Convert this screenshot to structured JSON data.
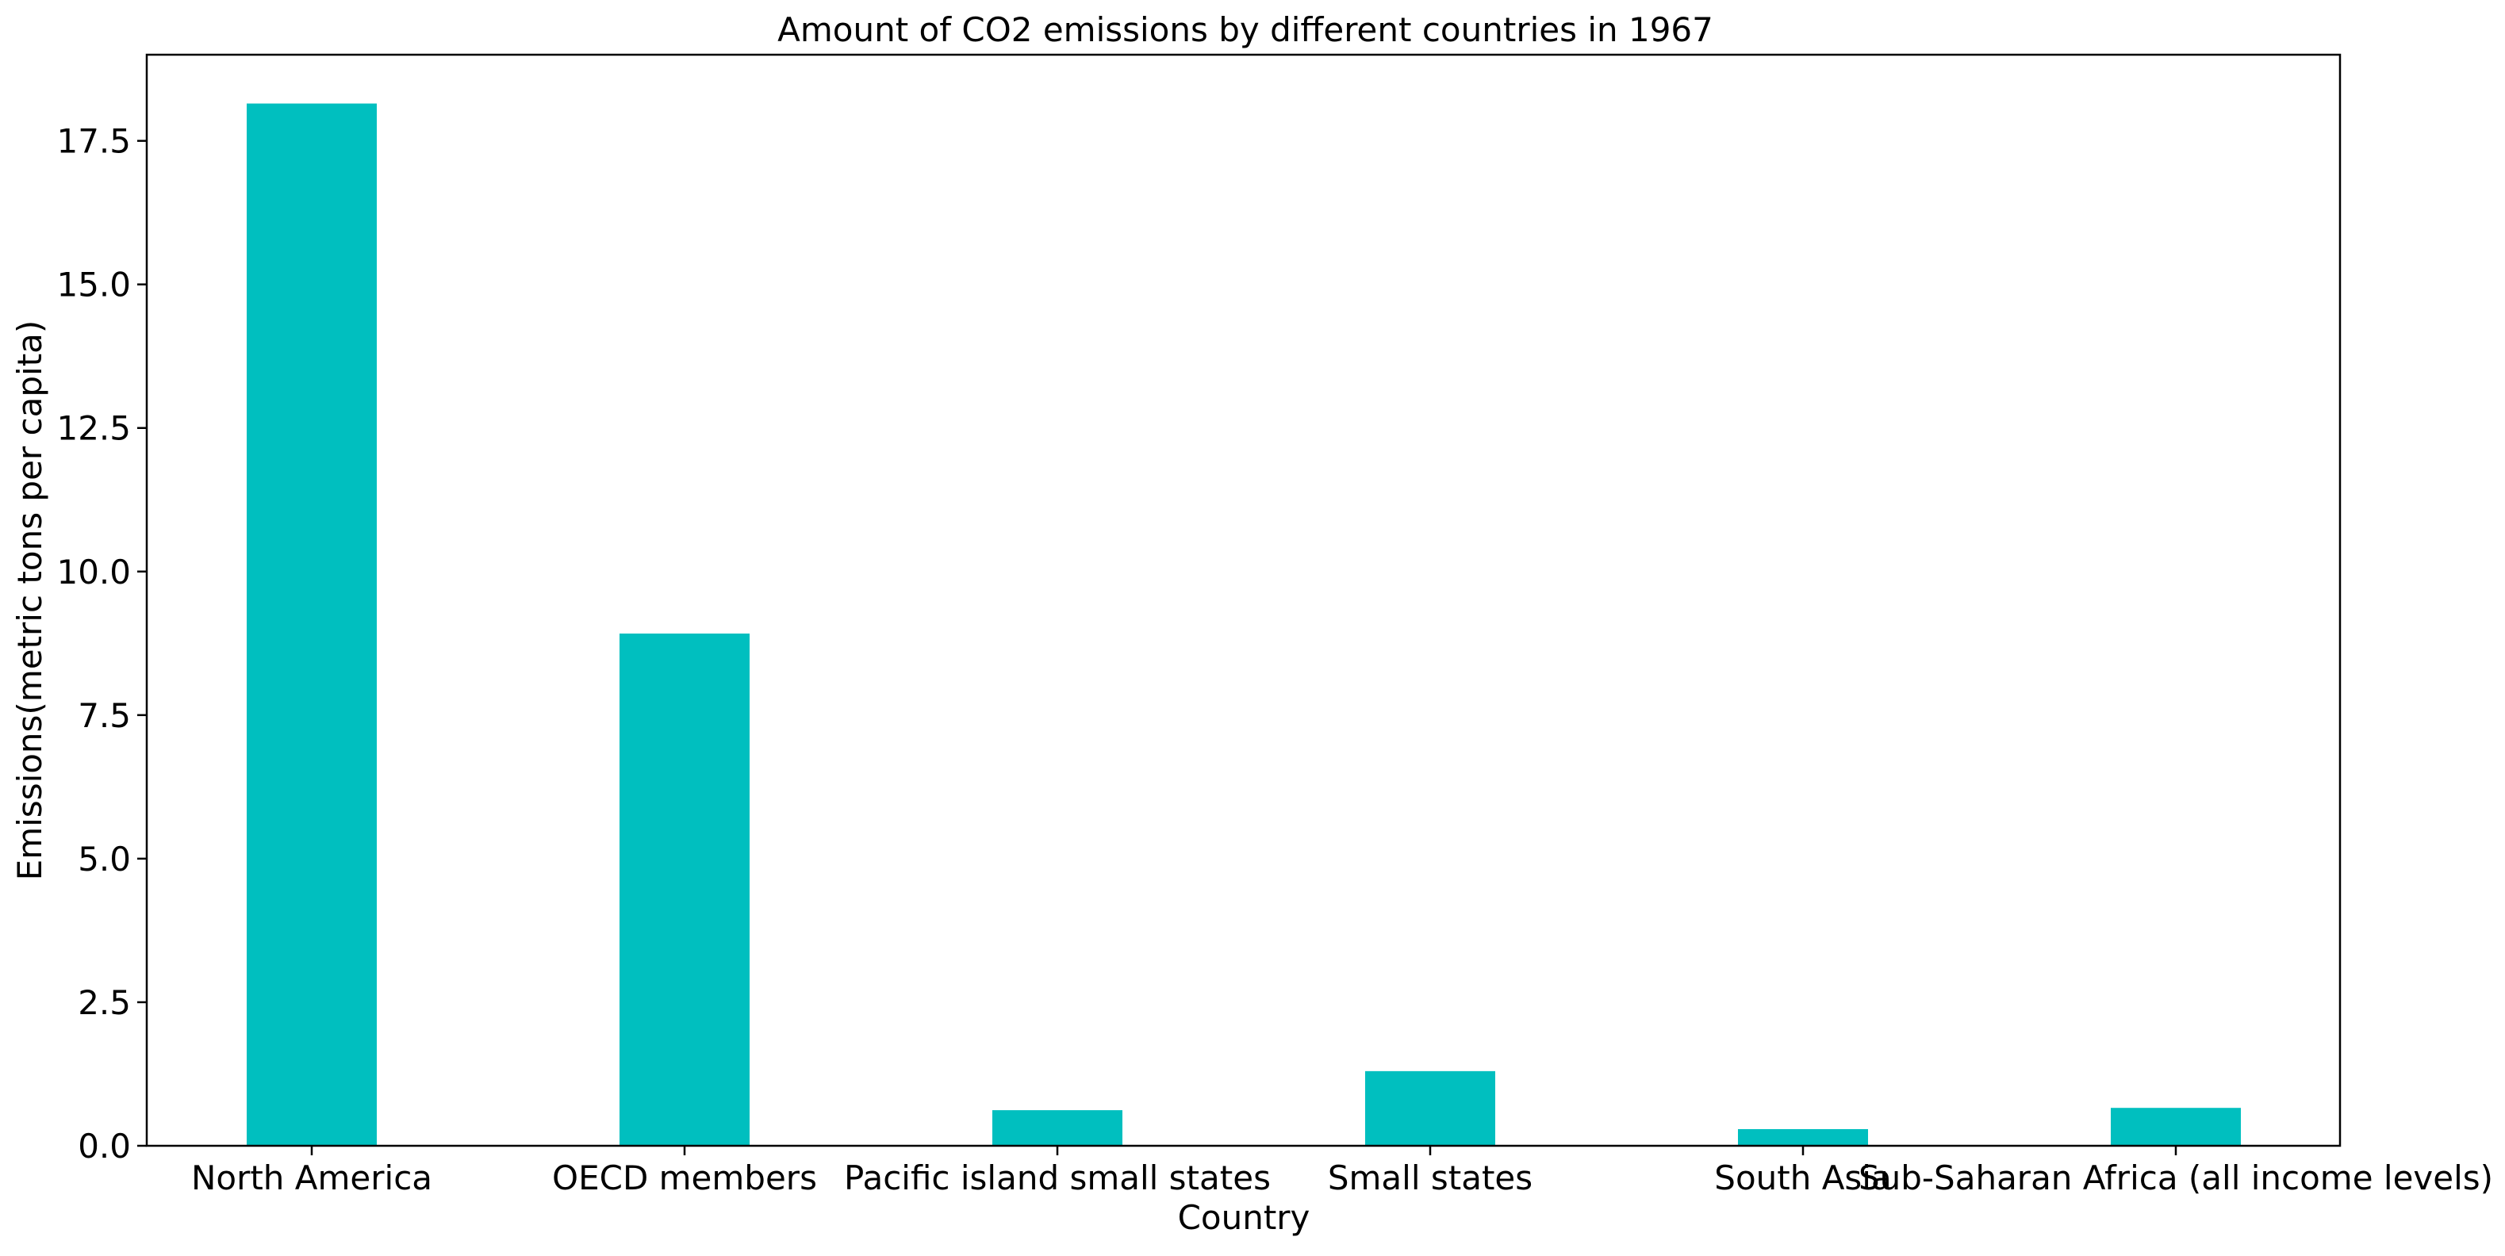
{
  "chart_data": {
    "type": "bar",
    "title": "Amount of CO2 emissions by different countries in 1967",
    "xlabel": "Country",
    "ylabel": "Emissions(metric tons per capita)",
    "categories": [
      "North America",
      "OECD members",
      "Pacific island small states",
      "Small states",
      "South Asia",
      "Sub-Saharan Africa (all income levels)"
    ],
    "values": [
      18.15,
      8.92,
      0.62,
      1.3,
      0.29,
      0.66
    ],
    "ylim": [
      0,
      19
    ],
    "yticks": [
      "0.0",
      "2.5",
      "5.0",
      "7.5",
      "10.0",
      "12.5",
      "15.0",
      "17.5"
    ],
    "grid": false,
    "legend": false,
    "colors": {
      "bar": "#00bfbf",
      "axis": "#000000",
      "background": "#ffffff"
    }
  }
}
